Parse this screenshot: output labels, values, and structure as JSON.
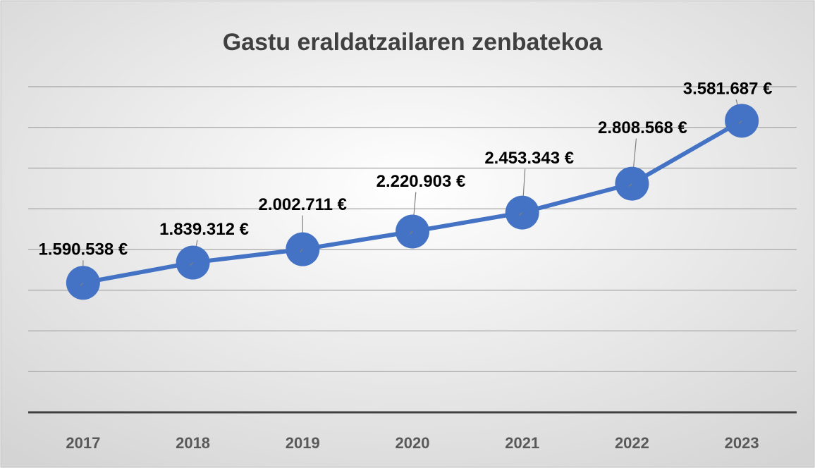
{
  "chart_data": {
    "type": "line",
    "title": "Gastu eraldatzailaren zenbatekoa",
    "categories": [
      "2017",
      "2018",
      "2019",
      "2020",
      "2021",
      "2022",
      "2023"
    ],
    "series": [
      {
        "color": "#4472c4",
        "values": [
          1590538,
          1839312,
          2002711,
          2220903,
          2453343,
          2808568,
          3581687
        ],
        "value_labels": [
          "1.590.538 €",
          "1.839.312 €",
          "2.002.711 €",
          "2.220.903 €",
          "2.453.343 €",
          "2.808.568 €",
          "3.581.687 €"
        ]
      }
    ],
    "ylim": [
      0,
      4000000
    ],
    "yticks": [
      0,
      500000,
      1000000,
      1500000,
      2000000,
      2500000,
      3000000,
      3500000,
      4000000
    ],
    "grid": true
  }
}
